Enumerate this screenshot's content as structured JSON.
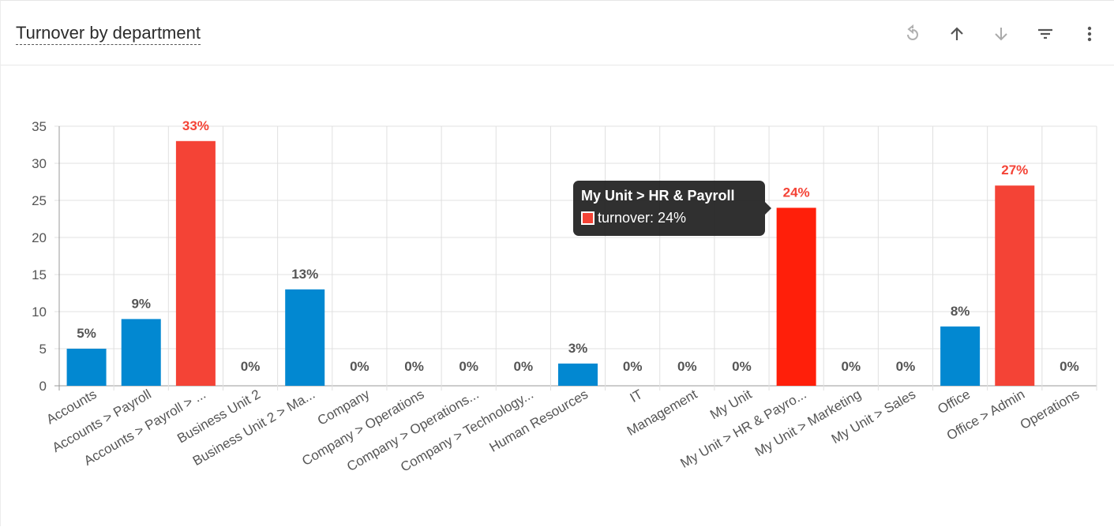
{
  "header": {
    "title": "Turnover by department",
    "toolbar": [
      {
        "name": "reset-icon",
        "label": "Reset"
      },
      {
        "name": "sort-ascending-icon",
        "label": "Sort ascending"
      },
      {
        "name": "sort-descending-icon",
        "label": "Sort descending"
      },
      {
        "name": "filter-icon",
        "label": "Filter"
      },
      {
        "name": "more-options-icon",
        "label": "More options"
      }
    ]
  },
  "colors": {
    "normal": "#0288d1",
    "high": "#f44336",
    "highlighted": "#ff1f0a",
    "high_label": "#f44336",
    "normal_label": "#555555",
    "grid": "#e0e0e0",
    "axis": "#999999"
  },
  "chart_data": {
    "type": "bar",
    "title": "",
    "xlabel": "",
    "ylabel": "",
    "ylim": [
      0,
      35
    ],
    "yticks": [
      0,
      5,
      10,
      15,
      20,
      25,
      30,
      35
    ],
    "grid": true,
    "series": [
      {
        "values": [
          5,
          9,
          33,
          0,
          13,
          0,
          0,
          0,
          0,
          3,
          0,
          0,
          0,
          24,
          0,
          0,
          8,
          27,
          0
        ]
      }
    ],
    "categories": [
      "Accounts",
      "Accounts > Payroll",
      "Accounts > Payroll > ...",
      "Business Unit 2",
      "Business Unit 2 > Ma...",
      "Company",
      "Company > Operations",
      "Company > Operations...",
      "Company > Technology...",
      "Human Resources",
      "IT",
      "Management",
      "My Unit",
      "My Unit > HR & Payro...",
      "My Unit > Marketing",
      "My Unit > Sales",
      "Office",
      "Office > Admin",
      "Operations"
    ],
    "data_labels": [
      "5%",
      "9%",
      "33%",
      "0%",
      "13%",
      "0%",
      "0%",
      "0%",
      "0%",
      "3%",
      "0%",
      "0%",
      "0%",
      "24%",
      "0%",
      "0%",
      "8%",
      "27%",
      "0%"
    ],
    "high_threshold": 20,
    "highlighted_index": 13
  },
  "tooltip": {
    "title": "My Unit > HR & Payroll",
    "label": "turnover: 24%"
  }
}
